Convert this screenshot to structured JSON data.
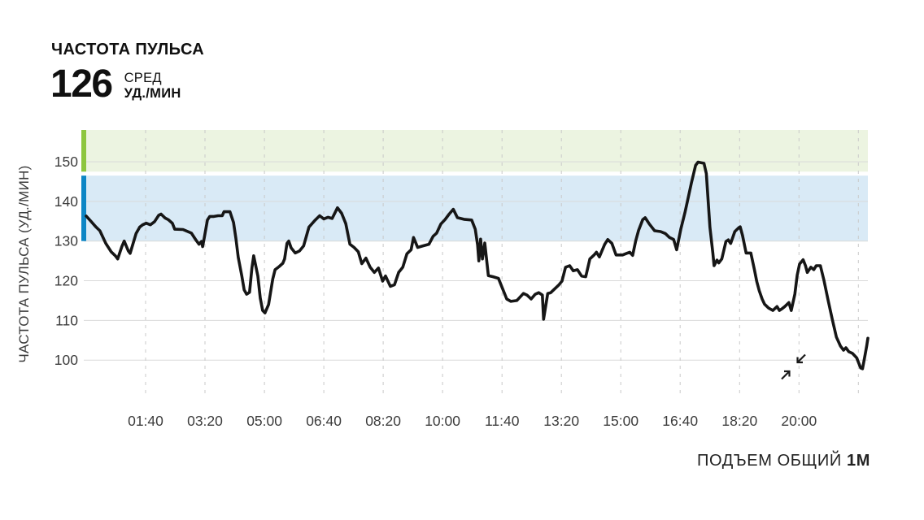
{
  "header": {
    "title": "ЧАСТОТА ПУЛЬСА",
    "value": "126",
    "stat_label": "СРЕД",
    "unit_label": "УД./МИН"
  },
  "footer": {
    "label": "ПОДЪЕМ ОБЩИЙ",
    "value": "1М"
  },
  "icons": {
    "collapse_chart": "collapse-arrows-icon"
  },
  "chart_data": {
    "type": "line",
    "title": "ЧАСТОТА ПУЛЬСА",
    "xlabel": "",
    "ylabel": "ЧАСТОТА ПУЛЬСА (УД./МИН)",
    "x_unit": "minutes",
    "xlim": [
      0,
      1316
    ],
    "ylim": [
      90,
      158
    ],
    "grid": "on",
    "legend": "none",
    "line_color": "#161616",
    "grid_color": "#d9d9d9",
    "grid_dash_color": "#c9c9c9",
    "tick_color": "#3c3c3c",
    "y_ticks": [
      100,
      110,
      120,
      130,
      140,
      150
    ],
    "x_ticks": [
      {
        "t": 100,
        "label": "01:40"
      },
      {
        "t": 200,
        "label": "03:20"
      },
      {
        "t": 300,
        "label": "05:00"
      },
      {
        "t": 400,
        "label": "06:40"
      },
      {
        "t": 500,
        "label": "08:20"
      },
      {
        "t": 600,
        "label": "10:00"
      },
      {
        "t": 700,
        "label": "11:40"
      },
      {
        "t": 800,
        "label": "13:20"
      },
      {
        "t": 900,
        "label": "15:00"
      },
      {
        "t": 1000,
        "label": "16:40"
      },
      {
        "t": 1100,
        "label": "18:20"
      },
      {
        "t": 1200,
        "label": "20:00"
      },
      {
        "t": 1300,
        "label": ""
      }
    ],
    "zones": [
      {
        "name": "zone-green",
        "color": "#8dc63f",
        "fill": "#ecf4e1",
        "from": 147.5,
        "to": 158
      },
      {
        "name": "zone-blue",
        "color": "#0d86c5",
        "fill": "#d9eaf6",
        "from": 130,
        "to": 146.5
      }
    ],
    "series": [
      {
        "name": "heart_rate",
        "points": [
          [
            0,
            136.3
          ],
          [
            8,
            135.0
          ],
          [
            16,
            133.6
          ],
          [
            23,
            132.6
          ],
          [
            33,
            129.4
          ],
          [
            42,
            127.3
          ],
          [
            49,
            126.3
          ],
          [
            53,
            125.5
          ],
          [
            60,
            128.6
          ],
          [
            64,
            130.0
          ],
          [
            71,
            127.5
          ],
          [
            74,
            126.9
          ],
          [
            84,
            131.9
          ],
          [
            90,
            133.5
          ],
          [
            95,
            134.1
          ],
          [
            101,
            134.5
          ],
          [
            108,
            134.1
          ],
          [
            115,
            134.9
          ],
          [
            122,
            136.5
          ],
          [
            126,
            136.8
          ],
          [
            133,
            135.8
          ],
          [
            138,
            135.4
          ],
          [
            145,
            134.5
          ],
          [
            149,
            133.0
          ],
          [
            163,
            132.9
          ],
          [
            177,
            132.0
          ],
          [
            185,
            130.2
          ],
          [
            190,
            129.2
          ],
          [
            194,
            129.9
          ],
          [
            196,
            128.6
          ],
          [
            199,
            131.0
          ],
          [
            204,
            135.3
          ],
          [
            208,
            136.2
          ],
          [
            215,
            136.2
          ],
          [
            222,
            136.4
          ],
          [
            229,
            136.4
          ],
          [
            232,
            137.4
          ],
          [
            242,
            137.4
          ],
          [
            248,
            134.7
          ],
          [
            252,
            130.7
          ],
          [
            256,
            125.9
          ],
          [
            262,
            121.2
          ],
          [
            266,
            117.7
          ],
          [
            270,
            116.6
          ],
          [
            275,
            117.1
          ],
          [
            279,
            123.2
          ],
          [
            282,
            126.3
          ],
          [
            289,
            121.2
          ],
          [
            293,
            115.6
          ],
          [
            297,
            112.5
          ],
          [
            301,
            111.9
          ],
          [
            307,
            114.0
          ],
          [
            314,
            120.4
          ],
          [
            318,
            122.8
          ],
          [
            325,
            123.6
          ],
          [
            331,
            124.4
          ],
          [
            334,
            125.5
          ],
          [
            338,
            129.4
          ],
          [
            341,
            130.0
          ],
          [
            345,
            128.3
          ],
          [
            352,
            127.0
          ],
          [
            359,
            127.5
          ],
          [
            366,
            128.8
          ],
          [
            375,
            133.5
          ],
          [
            385,
            135.2
          ],
          [
            393,
            136.4
          ],
          [
            400,
            135.6
          ],
          [
            407,
            136.0
          ],
          [
            414,
            135.7
          ],
          [
            419,
            137.2
          ],
          [
            423,
            138.4
          ],
          [
            430,
            137.0
          ],
          [
            437,
            134.4
          ],
          [
            444,
            129.2
          ],
          [
            451,
            128.4
          ],
          [
            458,
            127.3
          ],
          [
            464,
            124.3
          ],
          [
            471,
            125.7
          ],
          [
            478,
            123.4
          ],
          [
            485,
            122.1
          ],
          [
            492,
            123.2
          ],
          [
            499,
            119.9
          ],
          [
            504,
            121.2
          ],
          [
            512,
            118.6
          ],
          [
            519,
            119.0
          ],
          [
            526,
            122.1
          ],
          [
            533,
            123.4
          ],
          [
            540,
            126.8
          ],
          [
            547,
            127.8
          ],
          [
            551,
            130.9
          ],
          [
            558,
            128.4
          ],
          [
            567,
            128.8
          ],
          [
            577,
            129.2
          ],
          [
            584,
            131.2
          ],
          [
            590,
            132.0
          ],
          [
            597,
            134.3
          ],
          [
            604,
            135.4
          ],
          [
            611,
            136.8
          ],
          [
            618,
            138.0
          ],
          [
            625,
            135.9
          ],
          [
            636,
            135.5
          ],
          [
            649,
            135.3
          ],
          [
            655,
            133.0
          ],
          [
            659,
            129.0
          ],
          [
            661,
            125.0
          ],
          [
            664,
            130.5
          ],
          [
            667,
            125.5
          ],
          [
            671,
            129.5
          ],
          [
            677,
            121.3
          ],
          [
            685,
            121.0
          ],
          [
            694,
            120.6
          ],
          [
            701,
            118.0
          ],
          [
            708,
            115.4
          ],
          [
            715,
            114.8
          ],
          [
            725,
            115.0
          ],
          [
            736,
            116.8
          ],
          [
            742,
            116.4
          ],
          [
            749,
            115.4
          ],
          [
            756,
            116.6
          ],
          [
            762,
            117.0
          ],
          [
            768,
            116.4
          ],
          [
            770,
            110.3
          ],
          [
            774,
            114.0
          ],
          [
            777,
            116.8
          ],
          [
            782,
            117.0
          ],
          [
            789,
            118.0
          ],
          [
            796,
            119.0
          ],
          [
            801,
            119.9
          ],
          [
            807,
            123.4
          ],
          [
            814,
            123.8
          ],
          [
            820,
            122.5
          ],
          [
            827,
            122.8
          ],
          [
            834,
            121.2
          ],
          [
            841,
            121.0
          ],
          [
            848,
            125.5
          ],
          [
            855,
            126.5
          ],
          [
            859,
            127.2
          ],
          [
            864,
            126.0
          ],
          [
            873,
            129.2
          ],
          [
            878,
            130.4
          ],
          [
            885,
            129.4
          ],
          [
            892,
            126.5
          ],
          [
            903,
            126.5
          ],
          [
            910,
            126.9
          ],
          [
            915,
            127.2
          ],
          [
            920,
            126.4
          ],
          [
            925,
            130.0
          ],
          [
            930,
            132.7
          ],
          [
            937,
            135.4
          ],
          [
            941,
            135.9
          ],
          [
            948,
            134.3
          ],
          [
            957,
            132.6
          ],
          [
            967,
            132.4
          ],
          [
            975,
            131.9
          ],
          [
            982,
            130.9
          ],
          [
            989,
            130.4
          ],
          [
            994,
            127.8
          ],
          [
            1001,
            133.0
          ],
          [
            1008,
            137.2
          ],
          [
            1012,
            139.9
          ],
          [
            1019,
            144.7
          ],
          [
            1026,
            149.1
          ],
          [
            1030,
            149.9
          ],
          [
            1040,
            149.6
          ],
          [
            1044,
            147.0
          ],
          [
            1046,
            142.7
          ],
          [
            1050,
            133.5
          ],
          [
            1055,
            127.0
          ],
          [
            1057,
            123.8
          ],
          [
            1062,
            125.2
          ],
          [
            1065,
            124.5
          ],
          [
            1070,
            125.5
          ],
          [
            1077,
            129.9
          ],
          [
            1081,
            130.3
          ],
          [
            1085,
            129.4
          ],
          [
            1092,
            132.4
          ],
          [
            1099,
            133.4
          ],
          [
            1101,
            133.6
          ],
          [
            1105,
            131.4
          ],
          [
            1111,
            127.0
          ],
          [
            1119,
            127.0
          ],
          [
            1125,
            122.8
          ],
          [
            1129,
            119.8
          ],
          [
            1133,
            117.5
          ],
          [
            1138,
            115.4
          ],
          [
            1142,
            114.1
          ],
          [
            1149,
            113.1
          ],
          [
            1156,
            112.5
          ],
          [
            1163,
            113.5
          ],
          [
            1167,
            112.5
          ],
          [
            1172,
            113.0
          ],
          [
            1176,
            113.5
          ],
          [
            1183,
            114.5
          ],
          [
            1187,
            112.5
          ],
          [
            1193,
            116.6
          ],
          [
            1197,
            121.4
          ],
          [
            1201,
            124.2
          ],
          [
            1207,
            125.3
          ],
          [
            1211,
            123.8
          ],
          [
            1214,
            122.1
          ],
          [
            1220,
            123.4
          ],
          [
            1225,
            122.8
          ],
          [
            1229,
            123.8
          ],
          [
            1236,
            123.8
          ],
          [
            1242,
            120.1
          ],
          [
            1249,
            115.1
          ],
          [
            1256,
            110.3
          ],
          [
            1263,
            105.8
          ],
          [
            1270,
            103.5
          ],
          [
            1275,
            102.5
          ],
          [
            1279,
            103.1
          ],
          [
            1284,
            102.1
          ],
          [
            1290,
            101.7
          ],
          [
            1297,
            100.6
          ],
          [
            1304,
            98.0
          ],
          [
            1307,
            97.8
          ],
          [
            1311,
            101.0
          ],
          [
            1314,
            103.5
          ],
          [
            1316,
            105.5
          ]
        ]
      }
    ]
  }
}
